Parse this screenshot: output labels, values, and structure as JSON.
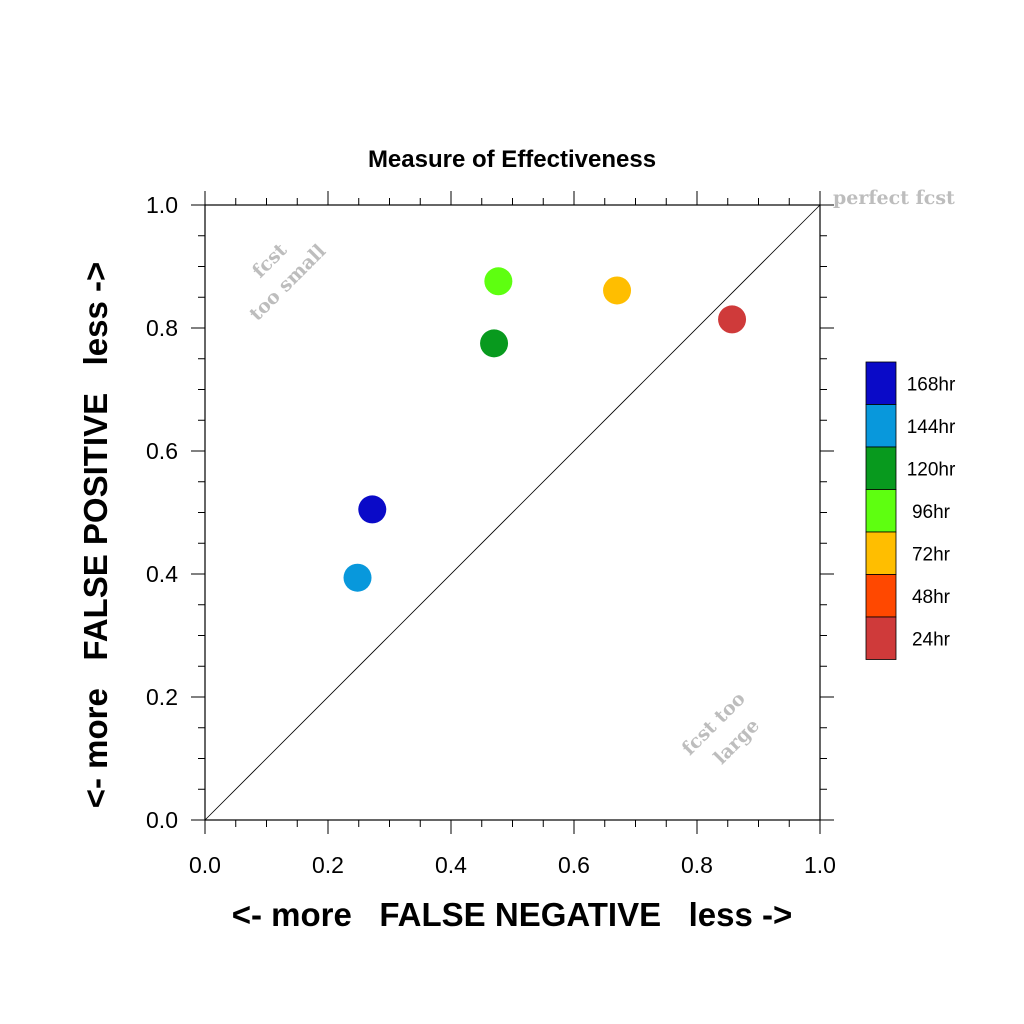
{
  "chart_data": {
    "type": "scatter",
    "title": "Measure of Effectiveness",
    "xlabel": "<- more   FALSE NEGATIVE   less ->",
    "ylabel": "<- more   FALSE POSITIVE   less ->",
    "xlim": [
      0.0,
      1.0
    ],
    "ylim": [
      0.0,
      1.0
    ],
    "x_ticks": [
      "0.0",
      "0.2",
      "0.4",
      "0.6",
      "0.8",
      "1.0"
    ],
    "y_ticks": [
      "0.0",
      "0.2",
      "0.4",
      "0.6",
      "0.8",
      "1.0"
    ],
    "grid": false,
    "diagonal_reference_line": true,
    "annotations": {
      "perfect": "perfect fcst",
      "too_small": [
        "fcst",
        "too small"
      ],
      "too_large": [
        "fcst too",
        "large"
      ]
    },
    "legend_position": "right",
    "series": [
      {
        "name": "168hr",
        "color": "#0a0ac8",
        "x": 0.272,
        "y": 0.505
      },
      {
        "name": "144hr",
        "color": "#0898dc",
        "x": 0.248,
        "y": 0.394
      },
      {
        "name": "120hr",
        "color": "#089a1e",
        "x": 0.47,
        "y": 0.775
      },
      {
        "name": "96hr",
        "color": "#5eff10",
        "x": 0.477,
        "y": 0.876
      },
      {
        "name": "72hr",
        "color": "#ffbe00",
        "x": 0.67,
        "y": 0.861
      },
      {
        "name": "48hr",
        "color": "#ff4800",
        "x": null,
        "y": null
      },
      {
        "name": "24hr",
        "color": "#cf3a3a",
        "x": 0.857,
        "y": 0.814
      }
    ]
  }
}
